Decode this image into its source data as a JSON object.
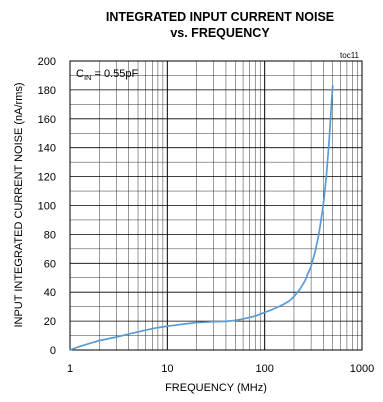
{
  "chart_data": {
    "type": "line",
    "title_line1": "INTEGRATED INPUT CURRENT NOISE",
    "title_line2": "vs. FREQUENCY",
    "xlabel": "FREQUENCY (MHz)",
    "ylabel": "INPUT INTEGRATED CURRENT NOISE (nA/rms)",
    "x_scale": "log",
    "xlim": [
      1,
      1000
    ],
    "ylim": [
      0,
      200
    ],
    "x_ticks": [
      "1",
      "10",
      "100",
      "1000"
    ],
    "y_ticks": [
      "0",
      "20",
      "40",
      "60",
      "80",
      "100",
      "120",
      "140",
      "160",
      "180",
      "200"
    ],
    "grid": true,
    "toc_label": "toc11",
    "annotation": {
      "main": "C",
      "sub": "IN",
      "rest": " = 0.55pF"
    },
    "colors": {
      "series": "#5b9bd5",
      "grid": "#000000"
    },
    "series": [
      {
        "x": [
          1,
          1.2,
          1.5,
          2,
          3,
          4,
          5,
          6,
          8,
          10,
          15,
          20,
          30,
          40,
          50,
          60,
          80,
          100,
          120,
          150,
          180,
          200,
          230,
          260,
          300,
          330,
          360,
          400,
          430,
          460,
          480,
          500
        ],
        "y": [
          0,
          2,
          4,
          6.5,
          9,
          11,
          12.5,
          13.8,
          15.5,
          16.5,
          18,
          19,
          19.6,
          19.8,
          20.5,
          21.5,
          23.5,
          26,
          28,
          31,
          34,
          37,
          42,
          48,
          58,
          68,
          80,
          100,
          120,
          145,
          165,
          183
        ]
      }
    ]
  }
}
